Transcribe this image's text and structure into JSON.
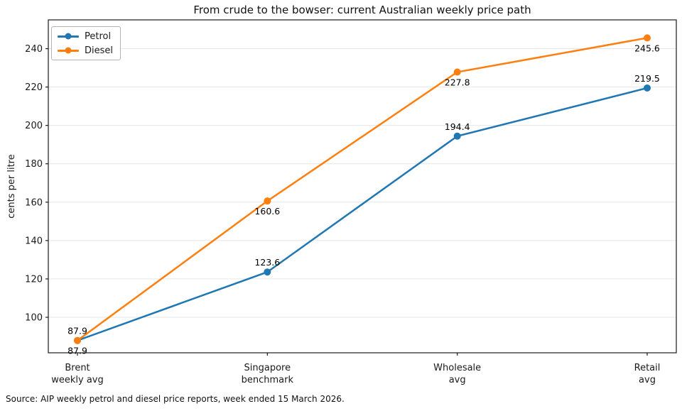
{
  "figure": {
    "source_note": "Source: AIP weekly petrol and diesel price reports, week ended 15 March 2026."
  },
  "chart_data": {
    "type": "line",
    "title": "From crude to the bowser: current Australian weekly price path",
    "categories": [
      "Brent\nweekly avg",
      "Singapore\nbenchmark",
      "Wholesale\navg",
      "Retail\navg"
    ],
    "series": [
      {
        "name": "Petrol",
        "color": "#1f77b4",
        "values": [
          87.9,
          123.6,
          194.4,
          219.5
        ],
        "label_position": [
          "below",
          "above",
          "above",
          "above"
        ]
      },
      {
        "name": "Diesel",
        "color": "#ff7f0e",
        "values": [
          87.9,
          160.6,
          227.8,
          245.6
        ],
        "label_position": [
          "above",
          "below",
          "below",
          "below"
        ]
      }
    ],
    "xlabel": "",
    "ylabel": "cents per litre",
    "yticks": [
      100,
      120,
      140,
      160,
      180,
      200,
      220,
      240
    ],
    "ylim": [
      81.5,
      255
    ],
    "grid": "horizontal",
    "grid_color": "#e6e6e6",
    "axis_color": "#1a1a1a",
    "legend_position": "upper left",
    "point_labels": true,
    "marker": "circle"
  }
}
